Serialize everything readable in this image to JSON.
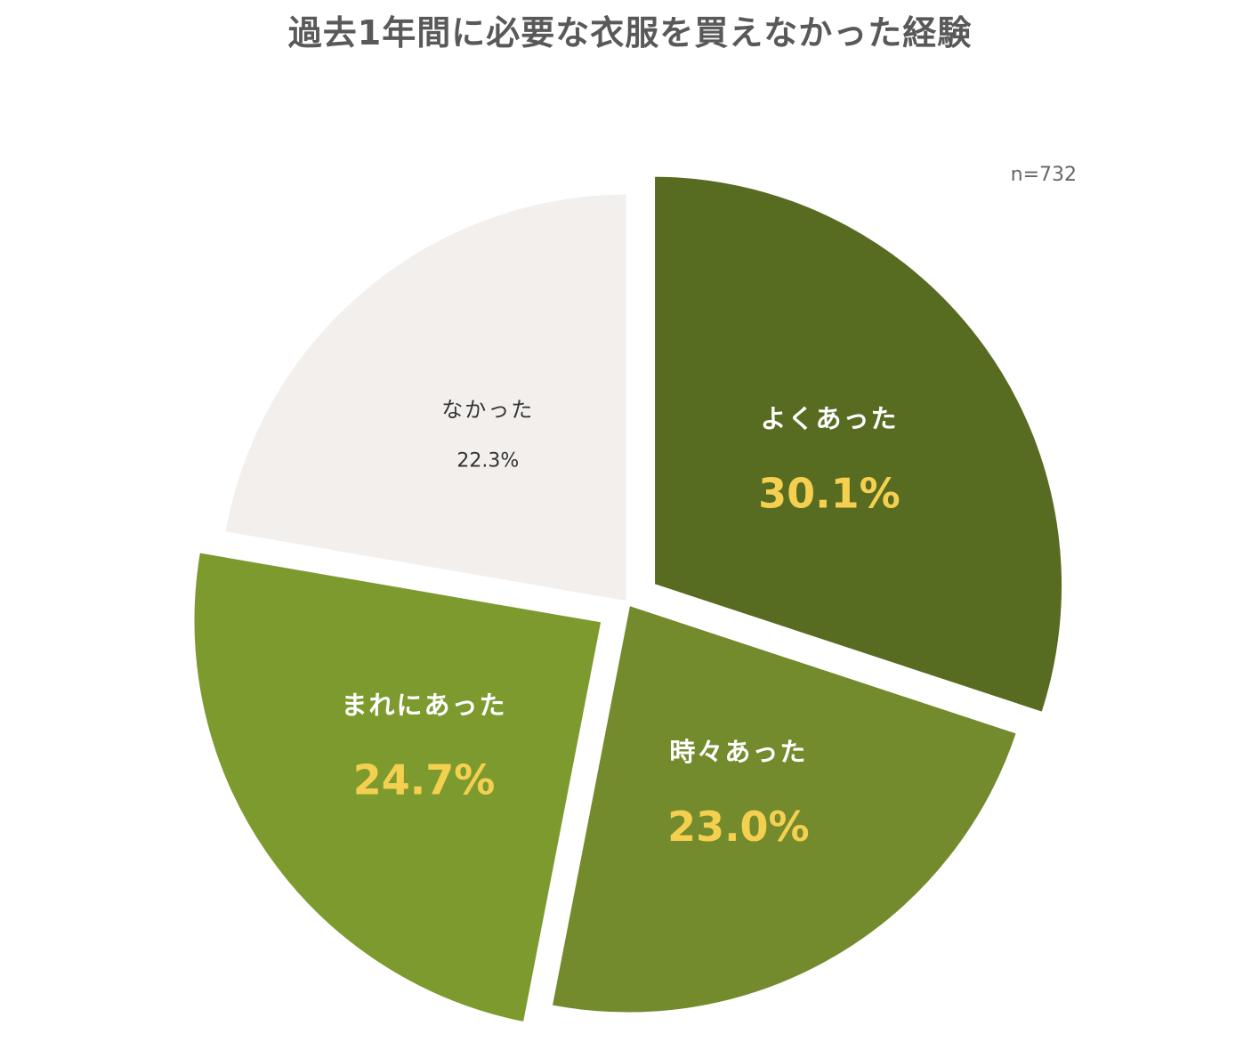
{
  "chart_data": {
    "type": "pie",
    "title": "過去1年間に必要な衣服を買えなかった経験",
    "note": "n=732",
    "slices": [
      {
        "label": "よくあった",
        "value": 30.1,
        "value_label": "30.1%",
        "color": "#576b21",
        "label_color": "#ffffff",
        "value_color": "#f5d050",
        "exploded": true
      },
      {
        "label": "時々あった",
        "value": 23.0,
        "value_label": "23.0%",
        "color": "#738b2c",
        "label_color": "#ffffff",
        "value_color": "#f5d050",
        "exploded": false
      },
      {
        "label": "まれにあった",
        "value": 24.7,
        "value_label": "24.7%",
        "color": "#7d9a2f",
        "label_color": "#ffffff",
        "value_color": "#f5d050",
        "exploded": true
      },
      {
        "label": "なかった",
        "value": 22.3,
        "value_label": "22.3%",
        "color": "#f2efec",
        "label_color": "#333333",
        "value_color": "#333333",
        "exploded": false
      }
    ]
  }
}
